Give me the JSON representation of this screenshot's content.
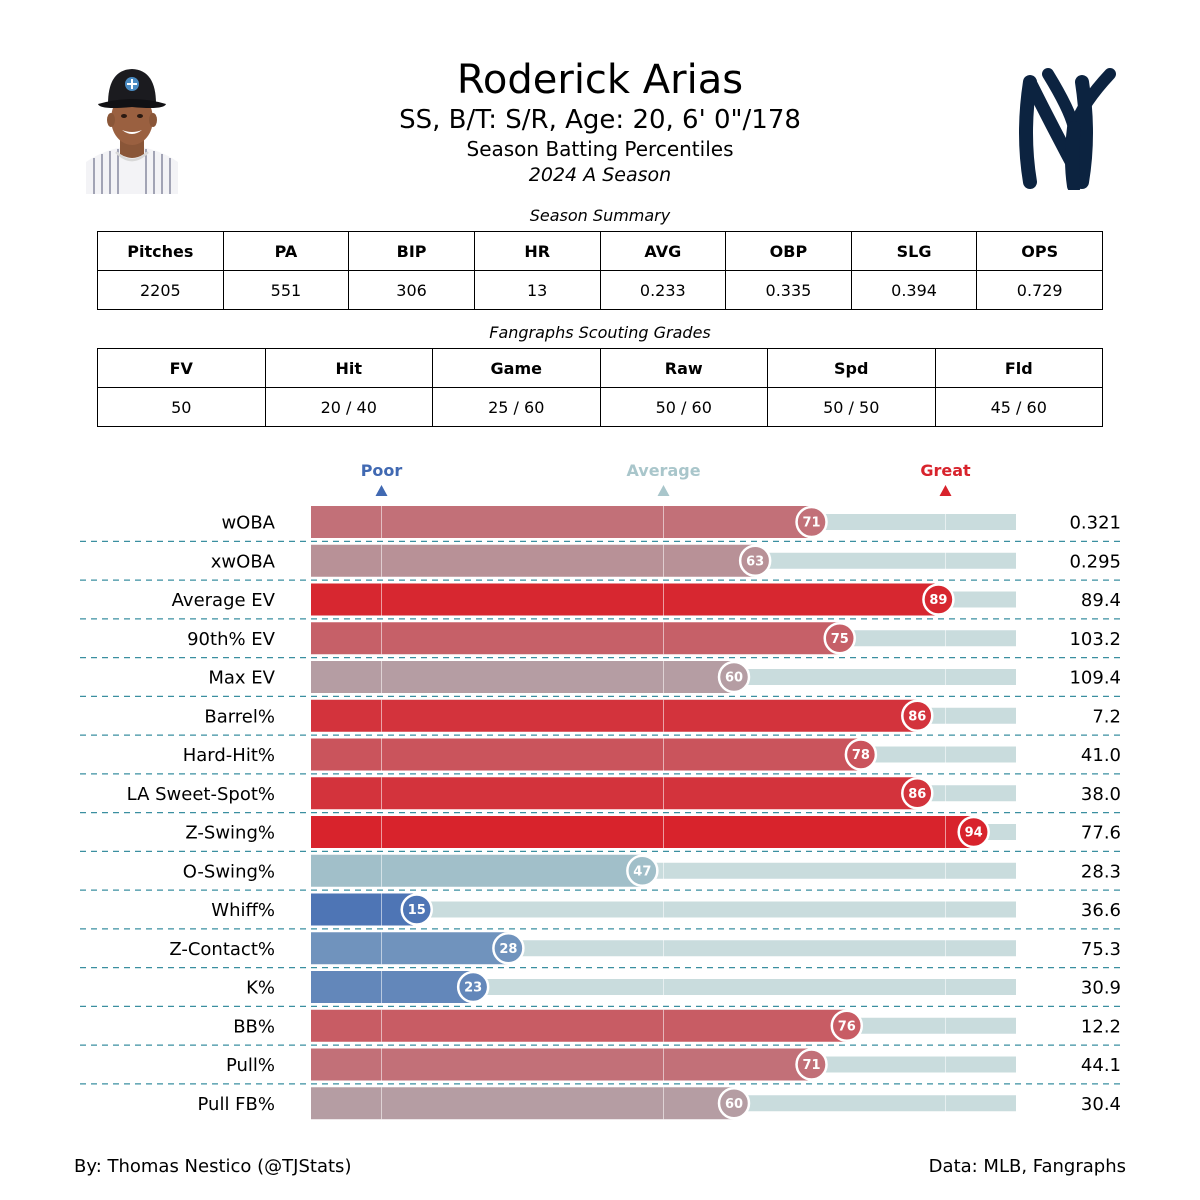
{
  "header": {
    "name": "Roderick Arias",
    "bio": "SS, B/T: S/R, Age: 20, 6' 0\"/178",
    "report_title": "Season Batting Percentiles",
    "season": "2024 A Season"
  },
  "season_summary": {
    "title": "Season Summary",
    "columns": [
      "Pitches",
      "PA",
      "BIP",
      "HR",
      "AVG",
      "OBP",
      "SLG",
      "OPS"
    ],
    "values": [
      "2205",
      "551",
      "306",
      "13",
      "0.233",
      "0.335",
      "0.394",
      "0.729"
    ]
  },
  "scouting_grades": {
    "title": "Fangraphs Scouting Grades",
    "columns": [
      "FV",
      "Hit",
      "Game",
      "Raw",
      "Spd",
      "Fld"
    ],
    "values": [
      "50",
      "20 / 40",
      "25 / 60",
      "50 / 60",
      "50 / 50",
      "45 / 60"
    ]
  },
  "colors": {
    "poor": "#4169b2",
    "average": "#a9c6cb",
    "great": "#d8232c",
    "track": "#c9dcdd",
    "divider": "#3a8fa0",
    "team_navy": "#0c2340"
  },
  "icons": {
    "headshot": "player-headshot-icon",
    "logo": "yankees-logo-icon"
  },
  "chart_data": {
    "type": "bar",
    "orientation": "horizontal",
    "xlim": [
      0,
      100
    ],
    "reference_lines": [
      10,
      50,
      90
    ],
    "legend": [
      {
        "label": "Poor",
        "at": 10
      },
      {
        "label": "Average",
        "at": 50
      },
      {
        "label": "Great",
        "at": 90
      }
    ],
    "metrics": [
      {
        "label": "wOBA",
        "percentile": 71,
        "value": "0.321"
      },
      {
        "label": "xwOBA",
        "percentile": 63,
        "value": "0.295"
      },
      {
        "label": "Average EV",
        "percentile": 89,
        "value": "89.4"
      },
      {
        "label": "90th% EV",
        "percentile": 75,
        "value": "103.2"
      },
      {
        "label": "Max EV",
        "percentile": 60,
        "value": "109.4"
      },
      {
        "label": "Barrel%",
        "percentile": 86,
        "value": "7.2"
      },
      {
        "label": "Hard-Hit%",
        "percentile": 78,
        "value": "41.0"
      },
      {
        "label": "LA Sweet-Spot%",
        "percentile": 86,
        "value": "38.0"
      },
      {
        "label": "Z-Swing%",
        "percentile": 94,
        "value": "77.6"
      },
      {
        "label": "O-Swing%",
        "percentile": 47,
        "value": "28.3"
      },
      {
        "label": "Whiff%",
        "percentile": 15,
        "value": "36.6"
      },
      {
        "label": "Z-Contact%",
        "percentile": 28,
        "value": "75.3"
      },
      {
        "label": "K%",
        "percentile": 23,
        "value": "30.9"
      },
      {
        "label": "BB%",
        "percentile": 76,
        "value": "12.2"
      },
      {
        "label": "Pull%",
        "percentile": 71,
        "value": "44.1"
      },
      {
        "label": "Pull FB%",
        "percentile": 60,
        "value": "30.4"
      }
    ]
  },
  "footer": {
    "credit": "By: Thomas Nestico (@TJStats)",
    "source": "Data: MLB, Fangraphs"
  }
}
